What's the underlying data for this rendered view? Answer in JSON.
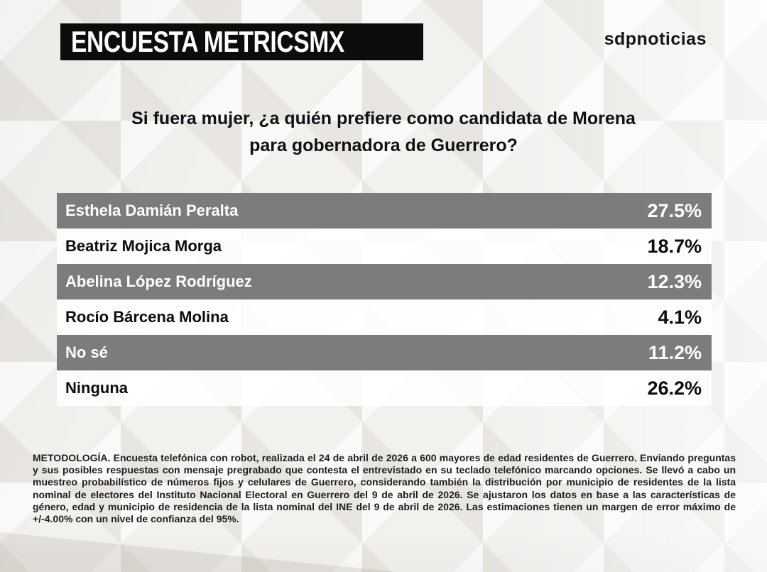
{
  "header": {
    "banner": "ENCUESTA METRICSMX",
    "logo": "sdpnoticias"
  },
  "question": {
    "line1": "Si fuera mujer, ¿a quién prefiere como candidata de Morena",
    "line2": "para gobernadora de Guerrero?"
  },
  "chart_data": {
    "type": "table",
    "title": "Si fuera mujer, ¿a quién prefiere como candidata de Morena para gobernadora de Guerrero?",
    "categories": [
      "Esthela Damián Peralta",
      "Beatriz Mojica Morga",
      "Abelina López Rodríguez",
      "Rocío Bárcena Molina",
      "No sé",
      "Ninguna"
    ],
    "values": [
      27.5,
      18.7,
      12.3,
      4.1,
      11.2,
      26.2
    ],
    "unit": "%",
    "layout": "alternating gray/white full-width rows, value right-aligned"
  },
  "results": [
    {
      "name": "Esthela Damián Peralta",
      "value": "27.5%"
    },
    {
      "name": "Beatriz Mojica Morga",
      "value": "18.7%"
    },
    {
      "name": "Abelina López Rodríguez",
      "value": "12.3%"
    },
    {
      "name": "Rocío Bárcena Molina",
      "value": "4.1%"
    },
    {
      "name": "No sé",
      "value": "11.2%"
    },
    {
      "name": "Ninguna",
      "value": "26.2%"
    }
  ],
  "methodology": "METODOLOGÍA. Encuesta telefónica con robot, realizada el 24 de abril de 2026 a 600 mayores de edad residentes de Guerrero. Enviando preguntas y sus posibles respuestas con mensaje pregrabado que contesta el entrevistado en su teclado telefónico marcando opciones. Se llevó a cabo un muestreo probabilístico de números fijos y celulares de Guerrero, considerando también la distribución por municipio de residentes de la lista nominal de electores del Instituto Nacional Electoral en Guerrero del 9 de abril de 2026. Se ajustaron los datos en base a las características de género, edad y municipio de residencia de la lista nominal del INE del 9 de abril de 2026. Las estimaciones tienen un margen de error máximo de +/-4.00% con un nivel de confianza del 95%.",
  "colors": {
    "row_gray": "#7c7c7c",
    "row_white": "#fbfaf9",
    "banner_bg": "#0c0c0c",
    "banner_text": "#ffffff",
    "text_dark": "#1d1d1d"
  }
}
